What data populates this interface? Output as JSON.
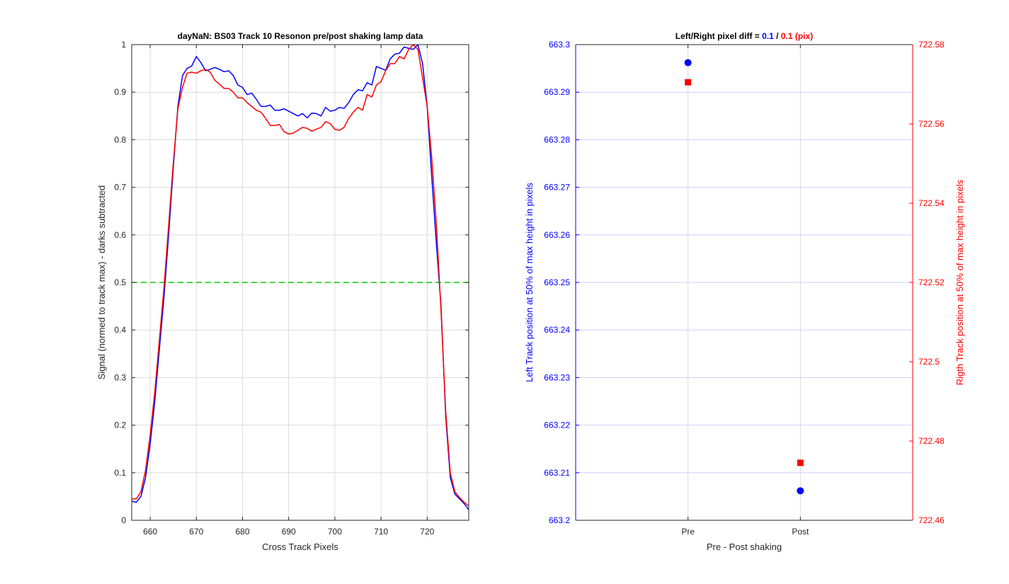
{
  "chart_data": [
    {
      "type": "line",
      "title": "dayNaN: BS03  Track 10 Resonon pre/post shaking lamp data",
      "xlabel": "Cross Track Pixels",
      "ylabel": "Signal (normed to track max) - darks subtracted",
      "xlim": [
        656,
        729
      ],
      "ylim": [
        0,
        1
      ],
      "xticks": [
        660,
        670,
        680,
        690,
        700,
        710,
        720
      ],
      "yticks": [
        0,
        0.1,
        0.2,
        0.3,
        0.4,
        0.5,
        0.6,
        0.7,
        0.8,
        0.9,
        1
      ],
      "grid": true,
      "colors": {
        "pre": "#0000ff",
        "post": "#ff0000",
        "threshold": "#00cc00"
      },
      "threshold": 0.5,
      "series": [
        {
          "color": "#0000ff",
          "x": [
            656,
            657,
            658,
            659,
            660,
            661,
            662,
            663,
            664,
            665,
            666,
            667,
            668,
            669,
            670,
            671,
            672,
            673,
            674,
            675,
            676,
            677,
            678,
            679,
            680,
            681,
            682,
            683,
            684,
            685,
            686,
            687,
            688,
            689,
            690,
            691,
            692,
            693,
            694,
            695,
            696,
            697,
            698,
            699,
            700,
            701,
            702,
            703,
            704,
            705,
            706,
            707,
            708,
            709,
            710,
            711,
            712,
            713,
            714,
            715,
            716,
            717,
            718,
            719,
            720,
            721,
            722,
            723,
            724,
            725,
            726,
            727,
            728,
            729
          ],
          "values": [
            0.04,
            0.038,
            0.05,
            0.09,
            0.16,
            0.25,
            0.36,
            0.47,
            0.6,
            0.74,
            0.87,
            0.935,
            0.95,
            0.955,
            0.975,
            0.962,
            0.945,
            0.948,
            0.952,
            0.948,
            0.943,
            0.945,
            0.935,
            0.915,
            0.91,
            0.895,
            0.898,
            0.885,
            0.87,
            0.87,
            0.873,
            0.862,
            0.862,
            0.865,
            0.86,
            0.855,
            0.85,
            0.855,
            0.846,
            0.856,
            0.855,
            0.85,
            0.868,
            0.86,
            0.862,
            0.868,
            0.866,
            0.878,
            0.895,
            0.905,
            0.903,
            0.92,
            0.915,
            0.954,
            0.95,
            0.946,
            0.97,
            0.98,
            0.982,
            0.995,
            0.992,
            0.99,
            1.0,
            0.96,
            0.87,
            0.72,
            0.58,
            0.45,
            0.22,
            0.09,
            0.055,
            0.045,
            0.035,
            0.022
          ]
        },
        {
          "color": "#ff0000",
          "x": [
            656,
            657,
            658,
            659,
            660,
            661,
            662,
            663,
            664,
            665,
            666,
            667,
            668,
            669,
            670,
            671,
            672,
            673,
            674,
            675,
            676,
            677,
            678,
            679,
            680,
            681,
            682,
            683,
            684,
            685,
            686,
            687,
            688,
            689,
            690,
            691,
            692,
            693,
            694,
            695,
            696,
            697,
            698,
            699,
            700,
            701,
            702,
            703,
            704,
            705,
            706,
            707,
            708,
            709,
            710,
            711,
            712,
            713,
            714,
            715,
            716,
            717,
            718,
            719,
            720,
            721,
            722,
            723,
            724,
            725,
            726,
            727,
            728,
            729
          ],
          "values": [
            0.045,
            0.045,
            0.06,
            0.105,
            0.18,
            0.27,
            0.38,
            0.49,
            0.62,
            0.75,
            0.865,
            0.91,
            0.94,
            0.942,
            0.94,
            0.945,
            0.948,
            0.942,
            0.925,
            0.917,
            0.908,
            0.908,
            0.9,
            0.888,
            0.888,
            0.878,
            0.87,
            0.862,
            0.858,
            0.845,
            0.83,
            0.83,
            0.832,
            0.817,
            0.812,
            0.814,
            0.82,
            0.826,
            0.824,
            0.818,
            0.822,
            0.826,
            0.838,
            0.834,
            0.822,
            0.82,
            0.826,
            0.845,
            0.858,
            0.868,
            0.862,
            0.895,
            0.89,
            0.915,
            0.922,
            0.945,
            0.96,
            0.96,
            0.975,
            0.97,
            0.99,
            1.0,
            0.99,
            0.93,
            0.87,
            0.76,
            0.62,
            0.44,
            0.23,
            0.1,
            0.06,
            0.048,
            0.038,
            0.03
          ]
        }
      ]
    },
    {
      "type": "scatter",
      "title_parts": [
        {
          "text": "Left/Right pixel diff = ",
          "color": "#000000"
        },
        {
          "text": "0.1",
          "color": "#0000ff"
        },
        {
          "text": " / ",
          "color": "#000000"
        },
        {
          "text": "0.1 (pix)",
          "color": "#ff0000"
        }
      ],
      "xlabel": "Pre - Post shaking",
      "ylabel_left": "Left Track position at 50% of max height in pixels",
      "ylabel_right": "Rigth Track position at 50% of max height in pixels",
      "categories": [
        "Pre",
        "Post"
      ],
      "xlim": [
        0,
        3
      ],
      "ylim_left": [
        663.2,
        663.3
      ],
      "ylim_right": [
        722.46,
        722.58
      ],
      "yticks_left": [
        "663.2",
        "663.21",
        "663.22",
        "663.23",
        "663.24",
        "663.25",
        "663.26",
        "663.27",
        "663.28",
        "663.29",
        "663.3"
      ],
      "yticks_right": [
        "722.46",
        "722.48",
        "722.5",
        "722.52",
        "722.54",
        "722.56",
        "722.58"
      ],
      "grid": true,
      "series": [
        {
          "axis": "left",
          "color": "#0000ff",
          "marker": "circle",
          "x": [
            1,
            2
          ],
          "values": [
            663.2962,
            663.2062
          ]
        },
        {
          "axis": "right",
          "color": "#ff0000",
          "marker": "square",
          "x": [
            1,
            2
          ],
          "values": [
            722.5705,
            722.4745
          ]
        }
      ]
    }
  ]
}
